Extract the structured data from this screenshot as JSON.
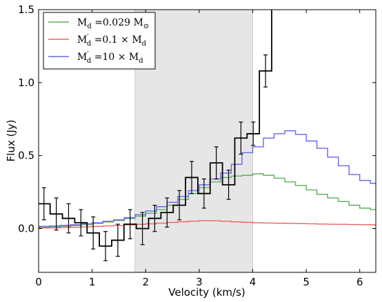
{
  "chart_data": {
    "type": "line",
    "xlabel": "Velocity (km/s)",
    "ylabel": "Flux (Jy)",
    "xlim": [
      0,
      6.3
    ],
    "ylim": [
      -0.3,
      1.5
    ],
    "x_ticks": [
      0,
      1,
      2,
      3,
      4,
      5,
      6
    ],
    "x_tick_labels": [
      "0",
      "1",
      "2",
      "3",
      "4",
      "5",
      "6"
    ],
    "y_ticks": [
      0.0,
      0.5,
      1.0,
      1.5
    ],
    "y_tick_labels": [
      "0.0",
      "0.5",
      "1.0",
      "1.5"
    ],
    "grid": false,
    "legend_position": "top-left",
    "shaded_region": {
      "x": [
        1.8,
        4.0
      ],
      "color": "#e6e6e6"
    },
    "observed": {
      "name": "",
      "color": "#000000",
      "style": "step",
      "bin_width": 0.23,
      "x": [
        0.1,
        0.33,
        0.56,
        0.79,
        1.02,
        1.25,
        1.48,
        1.71,
        1.94,
        2.17,
        2.4,
        2.63,
        2.86,
        3.09,
        3.32,
        3.55,
        3.78,
        4.01,
        4.24,
        4.47
      ],
      "values": [
        0.17,
        0.1,
        0.07,
        0.04,
        -0.03,
        -0.12,
        -0.08,
        0.03,
        0.0,
        0.07,
        0.11,
        0.16,
        0.35,
        0.24,
        0.45,
        0.3,
        0.62,
        0.65,
        1.08,
        1.6
      ],
      "errors": [
        0.11,
        0.11,
        0.1,
        0.09,
        0.11,
        0.1,
        0.11,
        0.1,
        0.11,
        0.09,
        0.1,
        0.1,
        0.11,
        0.1,
        0.11,
        0.1,
        0.11,
        0.08,
        0.11,
        0.1
      ]
    },
    "series": [
      {
        "name": "M_d =0.029 M_⊙",
        "color": "#5fae5f",
        "x": [
          0.0,
          0.2,
          0.4,
          0.6,
          0.8,
          1.0,
          1.2,
          1.4,
          1.6,
          1.8,
          2.0,
          2.2,
          2.4,
          2.6,
          2.8,
          3.0,
          3.2,
          3.4,
          3.6,
          3.8,
          4.0,
          4.2,
          4.4,
          4.6,
          4.8,
          5.0,
          5.2,
          5.4,
          5.6,
          5.8,
          6.0,
          6.2
        ],
        "values": [
          0.01,
          0.012,
          0.015,
          0.02,
          0.027,
          0.035,
          0.045,
          0.055,
          0.068,
          0.085,
          0.105,
          0.13,
          0.16,
          0.2,
          0.24,
          0.28,
          0.32,
          0.35,
          0.36,
          0.365,
          0.375,
          0.365,
          0.345,
          0.32,
          0.295,
          0.265,
          0.235,
          0.21,
          0.185,
          0.16,
          0.14,
          0.13
        ]
      },
      {
        "name": "M′_d =0.1 × M_d",
        "color": "#f06060",
        "x": [
          0.0,
          0.2,
          0.4,
          0.6,
          0.8,
          1.0,
          1.2,
          1.4,
          1.6,
          1.8,
          2.0,
          2.2,
          2.4,
          2.6,
          2.8,
          3.0,
          3.2,
          3.4,
          3.6,
          3.8,
          4.0,
          4.2,
          4.4,
          4.6,
          4.8,
          5.0,
          5.2,
          5.4,
          5.6,
          5.8,
          6.0,
          6.2
        ],
        "values": [
          0.004,
          0.005,
          0.007,
          0.009,
          0.012,
          0.015,
          0.018,
          0.021,
          0.025,
          0.029,
          0.033,
          0.037,
          0.042,
          0.047,
          0.051,
          0.054,
          0.053,
          0.05,
          0.046,
          0.043,
          0.04,
          0.038,
          0.037,
          0.035,
          0.034,
          0.033,
          0.031,
          0.03,
          0.029,
          0.028,
          0.027,
          0.026
        ]
      },
      {
        "name": "M′_d =10 × M_d",
        "color": "#6666ee",
        "x": [
          0.0,
          0.2,
          0.4,
          0.6,
          0.8,
          1.0,
          1.2,
          1.4,
          1.6,
          1.8,
          2.0,
          2.2,
          2.4,
          2.6,
          2.8,
          3.0,
          3.2,
          3.4,
          3.6,
          3.8,
          4.0,
          4.2,
          4.4,
          4.6,
          4.8,
          5.0,
          5.2,
          5.4,
          5.6,
          5.8,
          6.0,
          6.2
        ],
        "values": [
          0.015,
          0.018,
          0.022,
          0.027,
          0.033,
          0.04,
          0.05,
          0.06,
          0.075,
          0.095,
          0.12,
          0.15,
          0.18,
          0.22,
          0.26,
          0.3,
          0.34,
          0.38,
          0.44,
          0.52,
          0.56,
          0.62,
          0.65,
          0.67,
          0.645,
          0.6,
          0.55,
          0.49,
          0.43,
          0.37,
          0.33,
          0.31
        ]
      }
    ],
    "legend": [
      {
        "base": "M",
        "sub": "d",
        "prime": false,
        "text": " =0.029 M",
        "text_sub": "⊙",
        "color": "#5fae5f"
      },
      {
        "base": "M",
        "sub": "d",
        "prime": true,
        "text": " =0.1 × M",
        "text_sub": "d",
        "color": "#f06060"
      },
      {
        "base": "M",
        "sub": "d",
        "prime": true,
        "text": " =10 × M",
        "text_sub": "d",
        "color": "#6666ee"
      }
    ]
  }
}
